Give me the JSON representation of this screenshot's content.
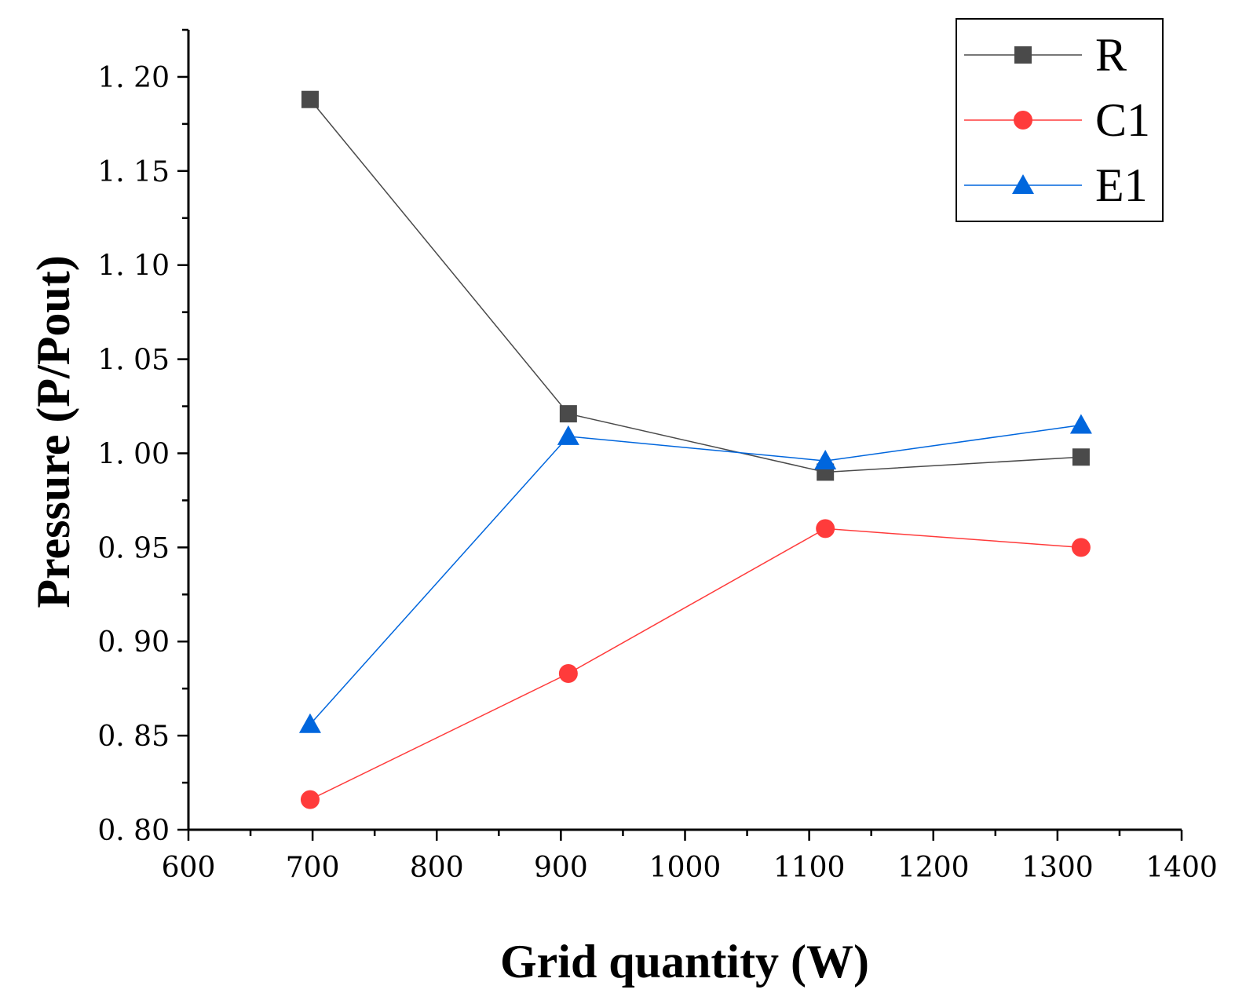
{
  "chart_data": {
    "type": "line",
    "title": "",
    "xlabel": "Grid quantity (W)",
    "ylabel": "Pressure (P/Pout)",
    "xlim": [
      600,
      1400
    ],
    "ylim": [
      0.8,
      1.225
    ],
    "xticks": [
      600,
      700,
      800,
      900,
      1000,
      1100,
      1200,
      1300,
      1400
    ],
    "yticks": [
      0.8,
      0.85,
      0.9,
      0.95,
      1.0,
      1.05,
      1.1,
      1.15,
      1.2
    ],
    "xtick_labels": [
      "600",
      "700",
      "800",
      "900",
      "1000",
      "1100",
      "1200",
      "1300",
      "1400"
    ],
    "ytick_labels": [
      "0. 80",
      "0. 85",
      "0. 90",
      "0. 95",
      "1. 00",
      "1. 05",
      "1. 10",
      "1. 15",
      "1. 20"
    ],
    "x": [
      698,
      906,
      1113,
      1319
    ],
    "series": [
      {
        "name": "R",
        "marker": "square",
        "color": "#4a4a4a",
        "values": [
          1.188,
          1.021,
          0.99,
          0.998
        ]
      },
      {
        "name": "C1",
        "marker": "circle",
        "color": "#ff3b3b",
        "values": [
          0.816,
          0.883,
          0.96,
          0.95
        ]
      },
      {
        "name": "E1",
        "marker": "triangle",
        "color": "#0066dd",
        "values": [
          0.856,
          1.009,
          0.996,
          1.015
        ]
      }
    ],
    "legend": {
      "position": "top-right",
      "entries": [
        "R",
        "C1",
        "E1"
      ]
    },
    "grid": false
  }
}
